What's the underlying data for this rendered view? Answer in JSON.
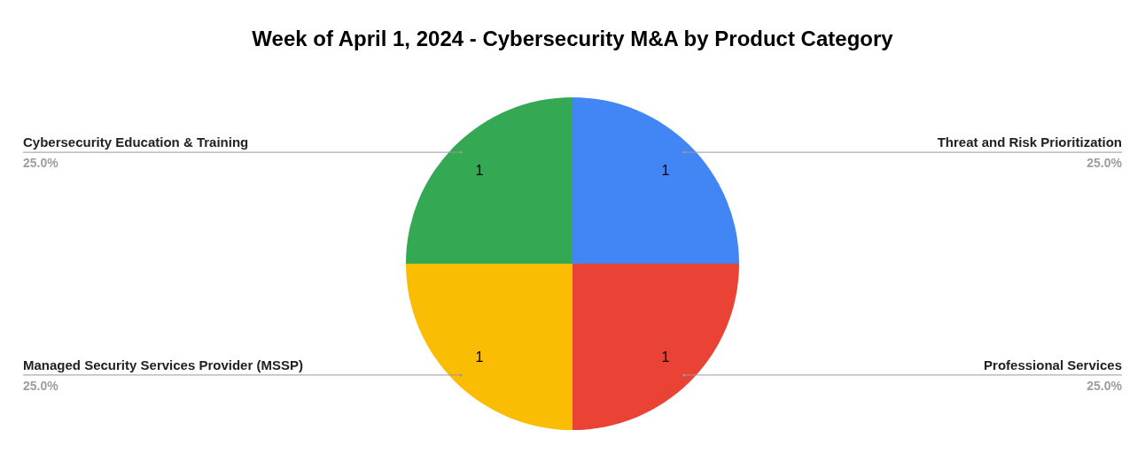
{
  "chart_data": {
    "type": "pie",
    "title": "Week of April 1, 2024 - Cybersecurity M&A by Product Category",
    "categories": [
      "Threat and Risk Prioritization",
      "Professional Services",
      "Managed Security Services Provider (MSSP)",
      "Cybersecurity Education & Training"
    ],
    "values": [
      1,
      1,
      1,
      1
    ],
    "colors": [
      "#4285f4",
      "#ea4335",
      "#fbbc04",
      "#34a853"
    ],
    "data_labels": true,
    "annotations": [
      {
        "text": "25.0%",
        "x": "Threat and Risk Prioritization"
      },
      {
        "text": "25.0%",
        "x": "Professional Services"
      },
      {
        "text": "25.0%",
        "x": "Managed Security Services Provider (MSSP)"
      },
      {
        "text": "25.0%",
        "x": "Cybersecurity Education & Training"
      }
    ]
  }
}
